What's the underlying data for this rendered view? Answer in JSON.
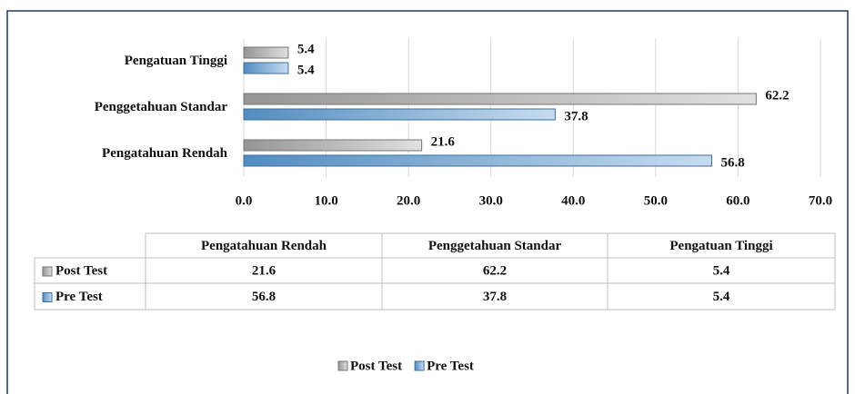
{
  "chart_data": {
    "type": "bar",
    "orientation": "horizontal",
    "categories": [
      "Pengatahuan Rendah",
      "Penggetahuan Standar",
      "Pengatuan Tinggi"
    ],
    "series": [
      {
        "name": "Post Test",
        "color": "#a6a6a6",
        "values": [
          21.6,
          62.2,
          5.4
        ]
      },
      {
        "name": "Pre Test",
        "color": "#5b9bd5",
        "values": [
          56.8,
          37.8,
          5.4
        ]
      }
    ],
    "xlim": [
      0,
      70
    ],
    "xticks": [
      {
        "value": 0,
        "label": "0.0"
      },
      {
        "value": 10,
        "label": "10.0"
      },
      {
        "value": 20,
        "label": "20.0"
      },
      {
        "value": 30,
        "label": "30.0"
      },
      {
        "value": 40,
        "label": "40.0"
      },
      {
        "value": 50,
        "label": "50.0"
      },
      {
        "value": 60,
        "label": "60.0"
      },
      {
        "value": 70,
        "label": "70.0"
      }
    ],
    "grid": true,
    "data_table": true,
    "legend": "bottom"
  }
}
